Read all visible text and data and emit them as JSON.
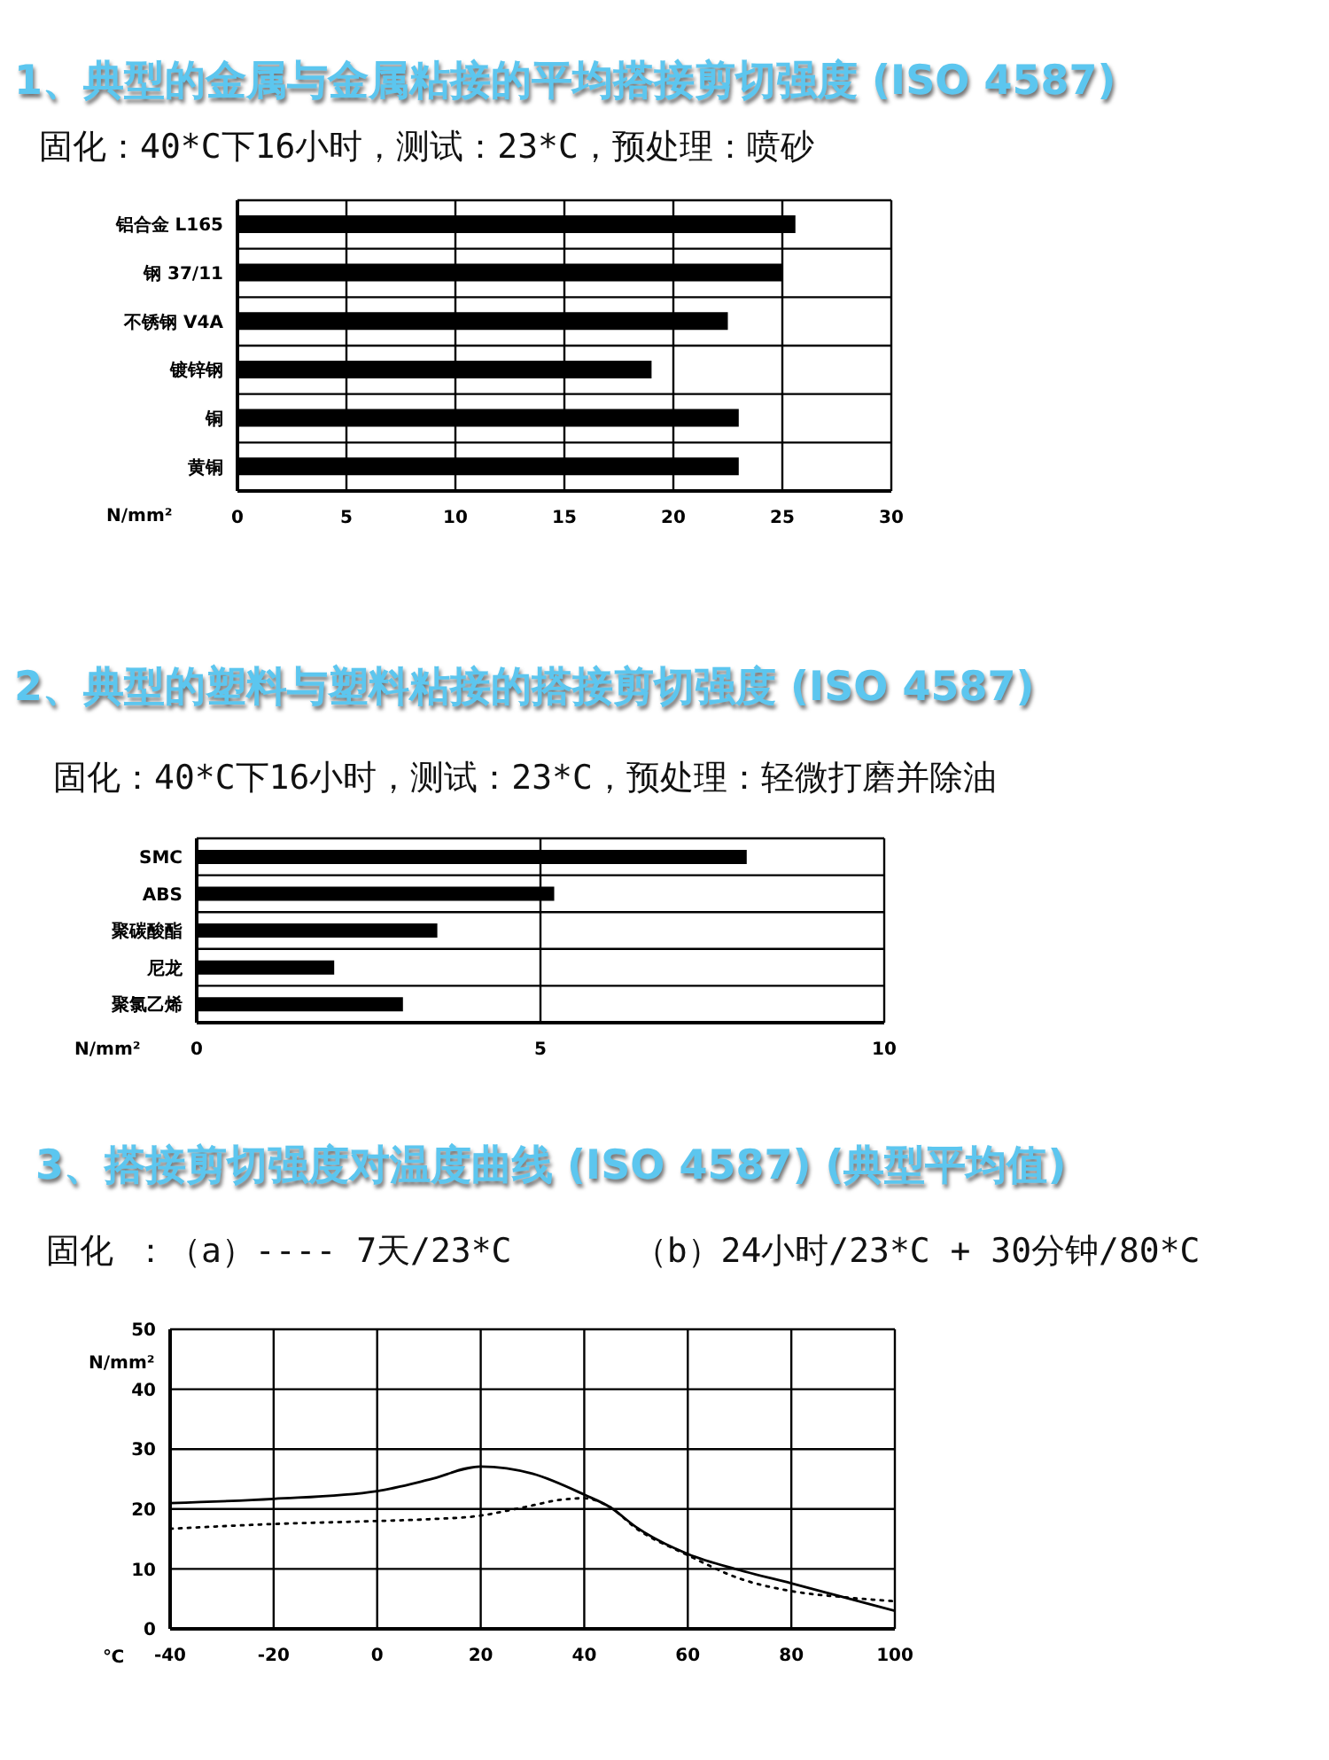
{
  "chart_data": [
    {
      "type": "bar",
      "orientation": "horizontal",
      "title": "1、典型的金属与金属粘接的平均搭接剪切强度 (ISO 4587)",
      "subtitle": "固化：40*C下16小时，测试：23*C，预处理：喷砂",
      "categories": [
        "铝合金 L165",
        "钢 37/11",
        "不锈钢 V4A",
        "镀锌钢",
        "铜",
        "黄铜"
      ],
      "values": [
        25.6,
        25,
        22.5,
        19,
        23,
        23
      ],
      "color": "#000000",
      "xlim": [
        0,
        30
      ],
      "xticks": [
        0,
        5,
        10,
        15,
        20,
        25,
        30
      ],
      "xlabel": "N/mm²",
      "grid": true
    },
    {
      "type": "bar",
      "orientation": "horizontal",
      "title": "2、典型的塑料与塑料粘接的搭接剪切强度 (ISO 4587)",
      "subtitle": "固化：40*C下16小时，测试：23*C，预处理：轻微打磨并除油",
      "categories": [
        "SMC",
        "ABS",
        "聚碳酸酯",
        "尼龙",
        "聚氯乙烯"
      ],
      "values": [
        8,
        5.2,
        3.5,
        2,
        3
      ],
      "color": "#000000",
      "xlim": [
        0,
        10
      ],
      "xticks": [
        0,
        5,
        10
      ],
      "xlabel": "N/mm²",
      "grid": true
    },
    {
      "type": "line",
      "title": "3、搭接剪切强度对温度曲线 (ISO 4587) (典型平均值)",
      "subtitle": "固化 ：（a）---- 7天/23*C      （b）24小时/23*C + 30分钟/80*C",
      "xlabel": "℃",
      "ylabel": "N/mm²",
      "xlim": [
        -40,
        100
      ],
      "xticks": [
        -40,
        -20,
        0,
        20,
        40,
        60,
        80,
        100
      ],
      "ylim": [
        0,
        50
      ],
      "yticks": [
        0,
        10,
        20,
        30,
        40,
        50
      ],
      "grid": true,
      "marker": "none",
      "series": [
        {
          "color": "#000000",
          "line_style": "solid",
          "x": [
            -40,
            -20,
            0,
            10,
            20,
            25,
            30,
            40,
            45,
            50,
            60,
            70,
            80,
            90,
            100
          ],
          "values": [
            21,
            21.7,
            23,
            24.9,
            27.1,
            26.8,
            25.9,
            22.4,
            20.3,
            17,
            12.5,
            9.8,
            7.6,
            5.3,
            3
          ]
        },
        {
          "color": "#000000",
          "line_style": "dotted",
          "x": [
            -40,
            -20,
            0,
            10,
            20,
            25,
            30,
            35,
            40,
            45,
            50,
            60,
            70,
            80,
            90,
            100
          ],
          "values": [
            16.7,
            17.5,
            18,
            18.3,
            18.9,
            19.7,
            20.6,
            21.5,
            21.8,
            20.3,
            16.8,
            12.3,
            8.4,
            6.3,
            5.3,
            4.6
          ]
        }
      ]
    }
  ]
}
